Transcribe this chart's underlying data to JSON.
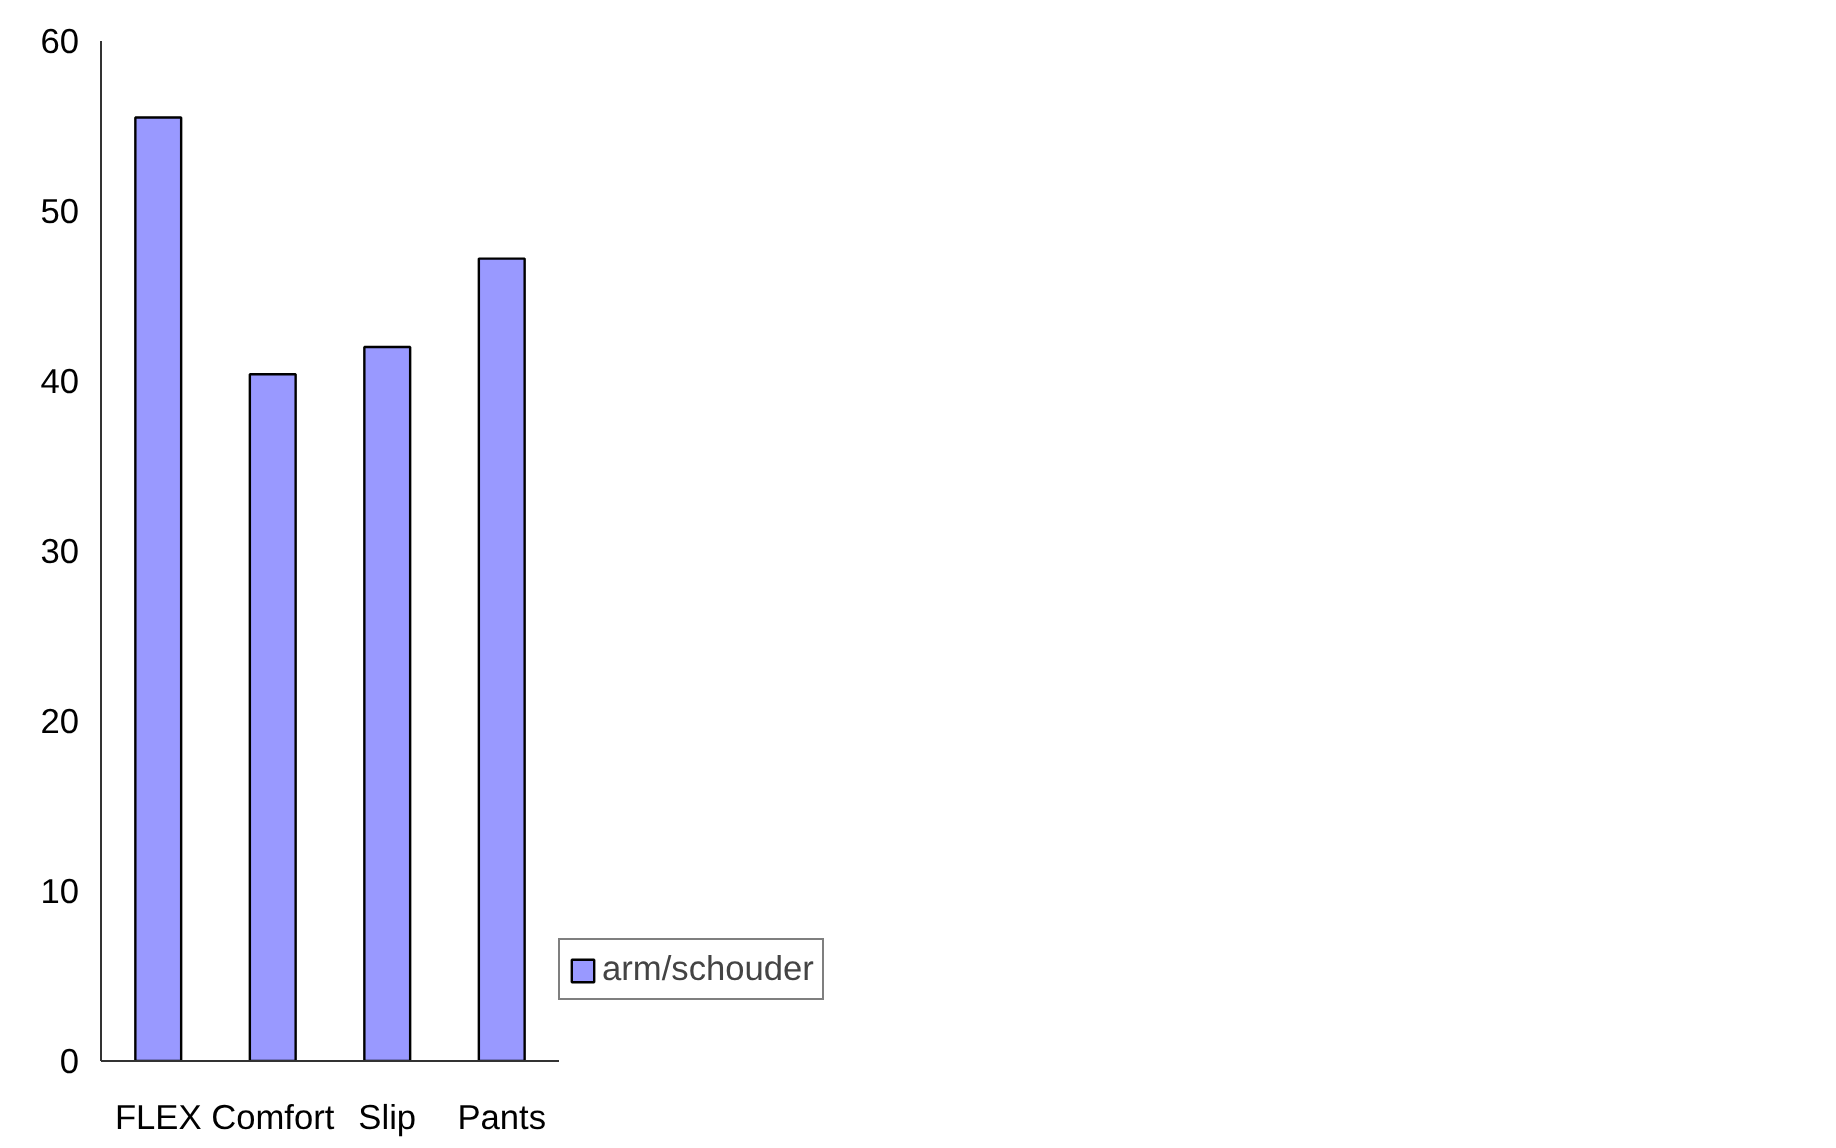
{
  "chart_data": {
    "type": "bar",
    "categories": [
      "FLEX",
      "Comfort",
      "Slip",
      "Pants"
    ],
    "series": [
      {
        "name": "arm/schouder",
        "color": "#9999ff",
        "values": [
          55.5,
          40.4,
          42,
          47.2
        ]
      }
    ],
    "ylim": [
      0,
      60
    ],
    "yticks": [
      0,
      10,
      20,
      30,
      40,
      50,
      60
    ],
    "grid": false,
    "legend": "right"
  }
}
